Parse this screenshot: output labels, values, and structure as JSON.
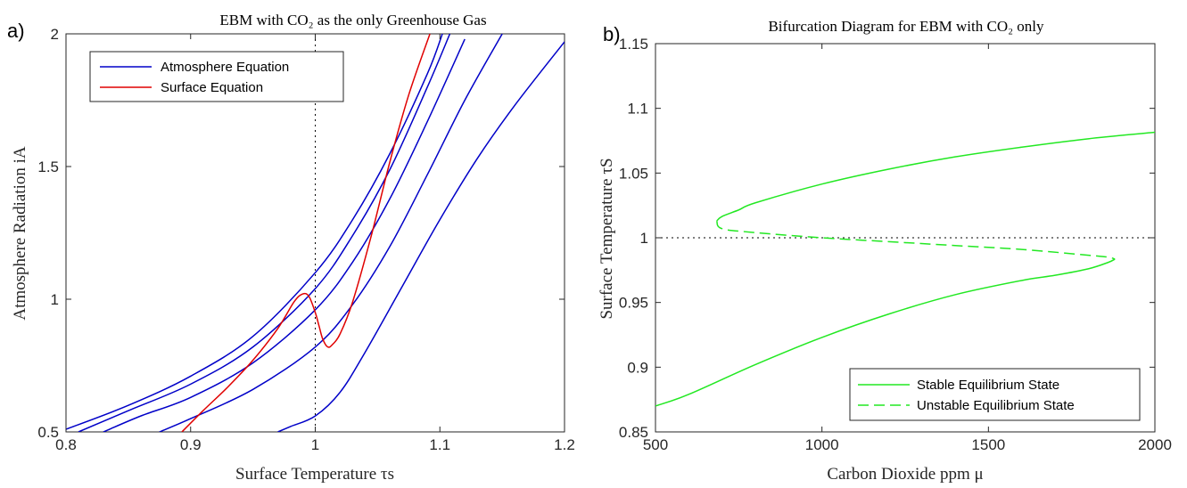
{
  "figure": {
    "panel_a_letter": "a)",
    "panel_b_letter": "b)"
  },
  "colors": {
    "atmosphere": "#0000c8",
    "surface": "#e00000",
    "equilibrium": "#22e822",
    "reference_line": "#000000"
  },
  "chart_data": [
    {
      "type": "line",
      "title": "EBM with CO₂ as the only Greenhouse Gas",
      "xlabel": "Surface Temperature τs",
      "ylabel": "Atmosphere Radiation iA",
      "xlim": [
        0.8,
        1.2
      ],
      "ylim": [
        0.5,
        2.0
      ],
      "xticks": [
        "0.8",
        "0.9",
        "1",
        "1.1",
        "1.2"
      ],
      "yticks": [
        "0.5",
        "1",
        "1.5",
        "2"
      ],
      "xtick_values": [
        0.8,
        0.9,
        1.0,
        1.1,
        1.2
      ],
      "ytick_values": [
        0.5,
        1.0,
        1.5,
        2.0
      ],
      "grid": false,
      "reference_line": {
        "orientation": "vertical",
        "x": 1.0,
        "style": "dotted"
      },
      "legend": {
        "location": "top-left",
        "entries": [
          "Atmosphere Equation",
          "Surface Equation"
        ]
      },
      "series": [
        {
          "name": "Atmosphere Equation",
          "color": "atmosphere",
          "x": [
            0.8,
            0.85,
            0.9,
            0.95,
            1.0,
            1.03,
            1.06,
            1.09,
            1.102
          ],
          "y": [
            0.51,
            0.6,
            0.71,
            0.86,
            1.1,
            1.3,
            1.55,
            1.85,
            2.0
          ]
        },
        {
          "name": "Atmosphere Equation",
          "color": "atmosphere",
          "x": [
            0.81,
            0.85,
            0.9,
            0.95,
            1.0,
            1.03,
            1.06,
            1.09,
            1.108
          ],
          "y": [
            0.5,
            0.58,
            0.68,
            0.82,
            1.04,
            1.24,
            1.49,
            1.8,
            2.0
          ]
        },
        {
          "name": "Atmosphere Equation",
          "color": "atmosphere",
          "x": [
            0.83,
            0.86,
            0.9,
            0.95,
            1.0,
            1.03,
            1.06,
            1.09,
            1.12
          ],
          "y": [
            0.5,
            0.56,
            0.63,
            0.76,
            0.96,
            1.14,
            1.38,
            1.67,
            1.98
          ]
        },
        {
          "name": "Atmosphere Equation",
          "color": "atmosphere",
          "x": [
            0.875,
            0.9,
            0.95,
            1.0,
            1.03,
            1.06,
            1.09,
            1.12,
            1.15
          ],
          "y": [
            0.5,
            0.55,
            0.66,
            0.82,
            0.98,
            1.2,
            1.47,
            1.75,
            2.0
          ]
        },
        {
          "name": "Atmosphere Equation",
          "color": "atmosphere",
          "x": [
            0.97,
            0.98,
            1.0,
            1.02,
            1.04,
            1.07,
            1.1,
            1.13,
            1.16,
            1.2
          ],
          "y": [
            0.5,
            0.52,
            0.56,
            0.65,
            0.8,
            1.05,
            1.3,
            1.53,
            1.73,
            1.97
          ]
        },
        {
          "name": "Surface Equation",
          "color": "surface",
          "x": [
            0.893,
            0.91,
            0.93,
            0.95,
            0.97,
            0.983,
            0.99,
            0.995,
            1.0,
            1.003,
            1.006,
            1.01,
            1.014,
            1.02,
            1.03,
            1.045,
            1.06,
            1.075,
            1.092
          ],
          "y": [
            0.5,
            0.58,
            0.67,
            0.77,
            0.89,
            0.99,
            1.02,
            1.01,
            0.95,
            0.9,
            0.85,
            0.82,
            0.83,
            0.87,
            0.99,
            1.24,
            1.52,
            1.77,
            2.0
          ]
        }
      ]
    },
    {
      "type": "line",
      "title": "Bifurcation Diagram for EBM with CO₂ only",
      "xlabel": "Carbon Dioxide ppm μ",
      "ylabel": "Surface Temperature τS",
      "xlim": [
        500,
        2000
      ],
      "ylim": [
        0.85,
        1.15
      ],
      "xticks": [
        "500",
        "1000",
        "1500",
        "2000"
      ],
      "yticks": [
        "0.85",
        "0.9",
        "0.95",
        "1",
        "1.05",
        "1.1",
        "1.15"
      ],
      "xtick_values": [
        500,
        1000,
        1500,
        2000
      ],
      "ytick_values": [
        0.85,
        0.9,
        0.95,
        1.0,
        1.05,
        1.1,
        1.15
      ],
      "grid": false,
      "reference_line": {
        "orientation": "horizontal",
        "y": 1.0,
        "style": "dotted"
      },
      "legend": {
        "location": "bottom-right",
        "entries": [
          "Stable Equilibrium State",
          "Unstable Equilibrium State"
        ]
      },
      "series": [
        {
          "name": "Stable Equilibrium State",
          "color": "equilibrium",
          "style": "solid",
          "x": [
            684,
            700,
            750,
            800,
            1000,
            1200,
            1400,
            1600,
            1800,
            2000
          ],
          "y": [
            1.013,
            1.0165,
            1.0215,
            1.027,
            1.0415,
            1.053,
            1.0625,
            1.07,
            1.0765,
            1.0815
          ]
        },
        {
          "name": "Unstable Equilibrium State",
          "color": "equilibrium",
          "style": "dashed",
          "x": [
            684,
            700,
            800,
            1000,
            1200,
            1400,
            1600,
            1800,
            1860,
            1880
          ],
          "y": [
            1.013,
            1.007,
            1.004,
            1.0,
            0.997,
            0.994,
            0.991,
            0.9865,
            0.985,
            0.9835
          ]
        },
        {
          "name": "Stable Equilibrium State",
          "color": "equilibrium",
          "style": "solid",
          "x": [
            1880,
            1860,
            1800,
            1700,
            1600,
            1400,
            1200,
            1000,
            800,
            600,
            500
          ],
          "y": [
            0.9835,
            0.981,
            0.976,
            0.971,
            0.967,
            0.956,
            0.941,
            0.923,
            0.902,
            0.879,
            0.87
          ]
        }
      ]
    }
  ]
}
